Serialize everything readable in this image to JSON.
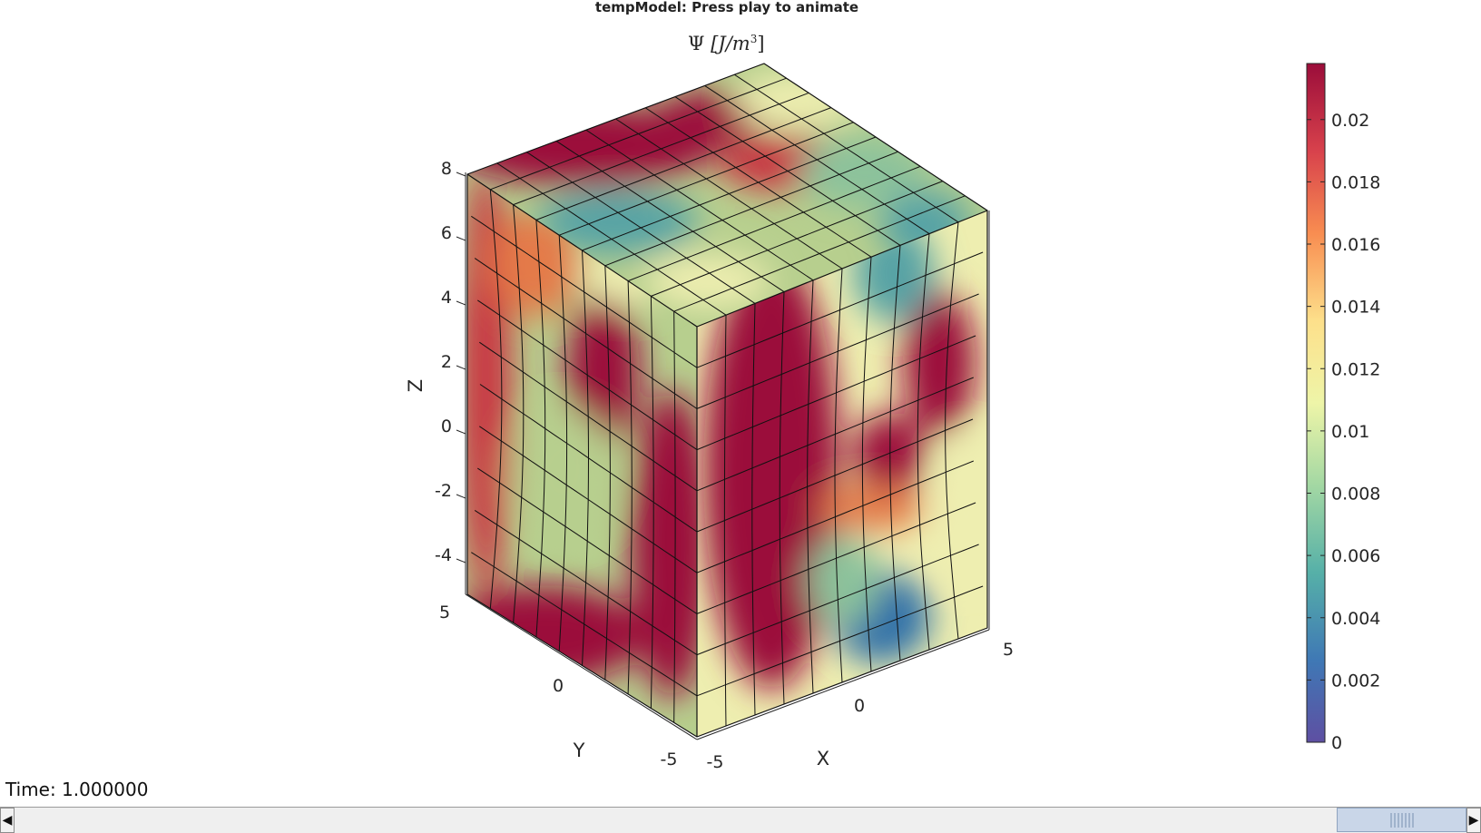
{
  "window": {
    "title": "tempModel: Press play to animate"
  },
  "plot": {
    "title_symbol": "Ψ",
    "title_units": "[J/m",
    "title_exponent": "3",
    "title_close": "]",
    "z_axis": {
      "label": "Z",
      "ticks": [
        "8",
        "6",
        "4",
        "2",
        "0",
        "-2",
        "-4"
      ]
    },
    "y_axis": {
      "label": "Y",
      "ticks": [
        "5",
        "0",
        "-5"
      ]
    },
    "x_axis": {
      "label": "X",
      "ticks": [
        "-5",
        "0",
        "5"
      ]
    }
  },
  "colorbar": {
    "ticks": [
      "0.02",
      "0.018",
      "0.016",
      "0.014",
      "0.012",
      "0.01",
      "0.008",
      "0.006",
      "0.004",
      "0.002",
      "0"
    ],
    "range": [
      0,
      0.0218
    ],
    "colors": {
      "high": "#9b0d3a",
      "upper": "#e0573b",
      "mid_high": "#fbb864",
      "mid": "#f2f5ab",
      "mid_low": "#a4d8a3",
      "lower": "#3f96b6",
      "low": "#5e4fa2"
    }
  },
  "mesh": {
    "colors": {
      "crimson": "#9b0d3a",
      "red": "#c9303f",
      "orange": "#e47a49",
      "cream": "#eeeeb0",
      "sage": "#b7cf8e",
      "green": "#8cc29b",
      "teal": "#56a3a5",
      "blue": "#2f6fa9",
      "edge": "#111111"
    }
  },
  "status": {
    "time_text": "Time: 1.000000"
  },
  "scrollbar": {
    "left_arrow": "◀",
    "right_arrow": "▶"
  }
}
